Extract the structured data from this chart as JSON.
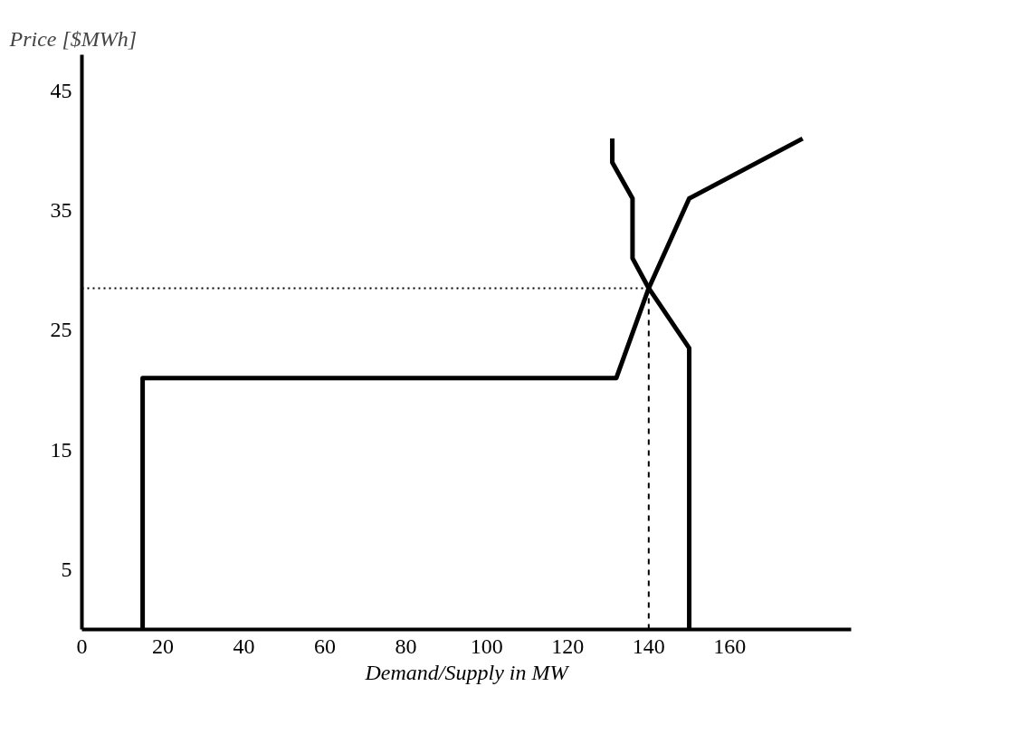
{
  "chart_data": {
    "type": "line",
    "xlabel": "Demand/Supply in MW",
    "ylabel": "Price [$MWh]",
    "series": [
      {
        "color": "#000000",
        "x": [
          15,
          15,
          132,
          140,
          150,
          178
        ],
        "values": [
          0,
          21,
          21,
          28.5,
          36,
          41
        ]
      },
      {
        "color": "#000000",
        "x": [
          131,
          131,
          136,
          136,
          140,
          150,
          150
        ],
        "values": [
          41,
          39,
          36,
          31,
          28.5,
          23.5,
          0
        ]
      }
    ],
    "xlim": [
      0,
      190
    ],
    "ylim": [
      0,
      48
    ],
    "xticks": [
      0,
      20,
      40,
      60,
      80,
      100,
      120,
      140,
      160
    ],
    "yticks": [
      5,
      15,
      25,
      35,
      45
    ],
    "ref_lines": [
      {
        "axis": "y",
        "value": 28.5,
        "line_style": "dotted",
        "color": "#000000"
      },
      {
        "axis": "x",
        "value": 140,
        "line_style": "dashed",
        "color": "#000000"
      }
    ],
    "grid": false,
    "line_style": "solid",
    "marker": "none"
  }
}
